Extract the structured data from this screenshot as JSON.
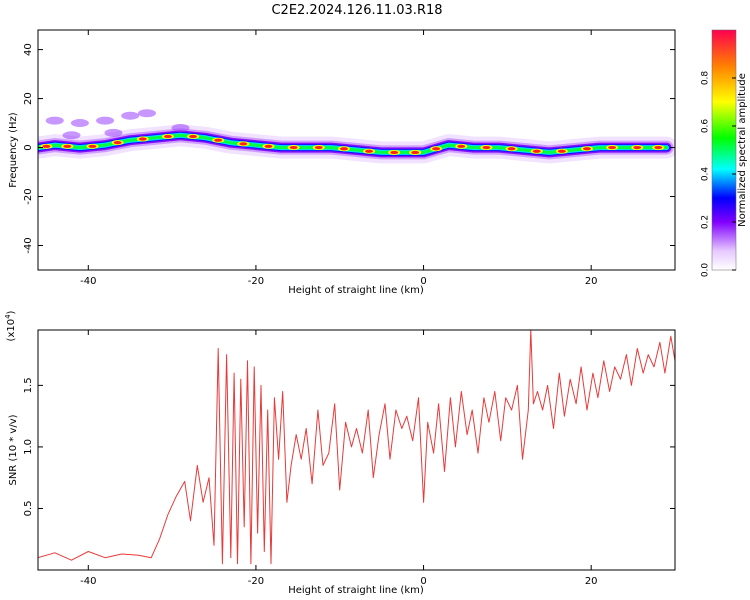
{
  "title": "C2E2.2024.126.11.03.R18",
  "chart_data": [
    {
      "type": "heatmap",
      "xlabel": "Height of straight line (km)",
      "ylabel": "Frequency (Hz)",
      "xlim": [
        -46,
        30
      ],
      "ylim": [
        -50,
        48
      ],
      "xticks": [
        -40,
        -20,
        0,
        20
      ],
      "yticks": [
        -40,
        -20,
        0,
        20,
        40
      ],
      "colorbar": {
        "label": "Normalized spectral amplitude",
        "range": [
          0,
          1
        ],
        "ticks": [
          0.0,
          0.2,
          0.4,
          0.6,
          0.8
        ],
        "colormap": [
          "#ffffff",
          "#e8c8ff",
          "#8000ff",
          "#0000ff",
          "#00ffff",
          "#00ff00",
          "#ffff00",
          "#ff8000",
          "#ff0000"
        ]
      },
      "ridge": [
        {
          "x": -46,
          "y": 0
        },
        {
          "x": -44,
          "y": 1
        },
        {
          "x": -41,
          "y": 0
        },
        {
          "x": -38,
          "y": 1
        },
        {
          "x": -35,
          "y": 3
        },
        {
          "x": -32,
          "y": 4
        },
        {
          "x": -29,
          "y": 5
        },
        {
          "x": -26,
          "y": 4
        },
        {
          "x": -23,
          "y": 2
        },
        {
          "x": -20,
          "y": 1
        },
        {
          "x": -17,
          "y": 0
        },
        {
          "x": -14,
          "y": 0
        },
        {
          "x": -11,
          "y": 0
        },
        {
          "x": -8,
          "y": -1
        },
        {
          "x": -5,
          "y": -2
        },
        {
          "x": -2,
          "y": -2
        },
        {
          "x": 0,
          "y": -2
        },
        {
          "x": 3,
          "y": 1
        },
        {
          "x": 6,
          "y": 0
        },
        {
          "x": 9,
          "y": 0
        },
        {
          "x": 12,
          "y": -1
        },
        {
          "x": 15,
          "y": -2
        },
        {
          "x": 18,
          "y": -1
        },
        {
          "x": 21,
          "y": 0
        },
        {
          "x": 24,
          "y": 0
        },
        {
          "x": 27,
          "y": 0
        },
        {
          "x": 29,
          "y": 0
        }
      ]
    },
    {
      "type": "line",
      "xlabel": "Height of straight line (km)",
      "ylabel": "SNR (10 * v/v)",
      "yscale_label": "(x10",
      "yscale_exp": "4",
      "xlim": [
        -46,
        30
      ],
      "ylim": [
        0,
        1.95
      ],
      "xticks": [
        -40,
        -20,
        0,
        20
      ],
      "yticks": [
        0.5,
        1.0,
        1.5
      ],
      "series": [
        {
          "color": "#e83a3a",
          "x": [
            -46,
            -44,
            -42,
            -40,
            -38,
            -36,
            -34,
            -32.5,
            -31.5,
            -30.5,
            -29.5,
            -28.5,
            -27.8,
            -27,
            -26.3,
            -25.6,
            -25,
            -24.5,
            -24,
            -23.5,
            -23,
            -22.6,
            -22.2,
            -21.8,
            -21.4,
            -21,
            -20.6,
            -20.2,
            -19.8,
            -19.4,
            -19,
            -18.6,
            -18.2,
            -17.8,
            -17.3,
            -16.8,
            -16.3,
            -15.8,
            -15.2,
            -14.6,
            -14,
            -13.3,
            -12.6,
            -12,
            -11.3,
            -10.6,
            -10,
            -9.3,
            -8.6,
            -8,
            -7.3,
            -6.6,
            -6,
            -5.3,
            -4.6,
            -4,
            -3.3,
            -2.6,
            -2,
            -1.3,
            -0.6,
            0,
            0.5,
            1.2,
            1.8,
            2.5,
            3.2,
            3.8,
            4.5,
            5.2,
            5.8,
            6.5,
            7.2,
            7.8,
            8.5,
            9.2,
            9.8,
            10.5,
            11.2,
            11.8,
            12.5,
            12.8,
            13.1,
            13.6,
            14.2,
            14.8,
            15.5,
            16.2,
            16.8,
            17.5,
            18.2,
            18.8,
            19.5,
            20.2,
            20.8,
            21.5,
            22.2,
            22.8,
            23.5,
            24.2,
            24.8,
            25.5,
            26.2,
            26.8,
            27.5,
            28.2,
            28.8,
            29.5,
            30
          ],
          "y": [
            0.1,
            0.14,
            0.08,
            0.15,
            0.1,
            0.13,
            0.12,
            0.1,
            0.25,
            0.45,
            0.6,
            0.72,
            0.4,
            0.85,
            0.55,
            0.75,
            0.2,
            1.8,
            0.05,
            1.75,
            0.1,
            1.6,
            0.05,
            1.55,
            0.35,
            1.7,
            0.05,
            1.65,
            0.3,
            1.5,
            0.15,
            1.3,
            0.05,
            1.4,
            0.9,
            1.45,
            0.55,
            0.85,
            1.1,
            0.9,
            1.15,
            0.7,
            1.3,
            0.85,
            0.95,
            1.35,
            0.65,
            1.2,
            1.0,
            1.15,
            0.95,
            1.3,
            0.75,
            1.1,
            1.35,
            0.9,
            1.3,
            1.15,
            1.25,
            1.05,
            1.4,
            0.55,
            1.2,
            0.95,
            1.35,
            0.8,
            1.4,
            1.0,
            1.45,
            1.1,
            1.3,
            0.95,
            1.4,
            1.2,
            1.45,
            1.05,
            1.4,
            1.3,
            1.5,
            0.9,
            1.3,
            1.95,
            1.35,
            1.45,
            1.3,
            1.5,
            1.15,
            1.6,
            1.25,
            1.55,
            1.35,
            1.65,
            1.3,
            1.6,
            1.4,
            1.7,
            1.45,
            1.65,
            1.55,
            1.75,
            1.5,
            1.8,
            1.6,
            1.75,
            1.65,
            1.85,
            1.6,
            1.9,
            1.7
          ]
        }
      ]
    }
  ]
}
